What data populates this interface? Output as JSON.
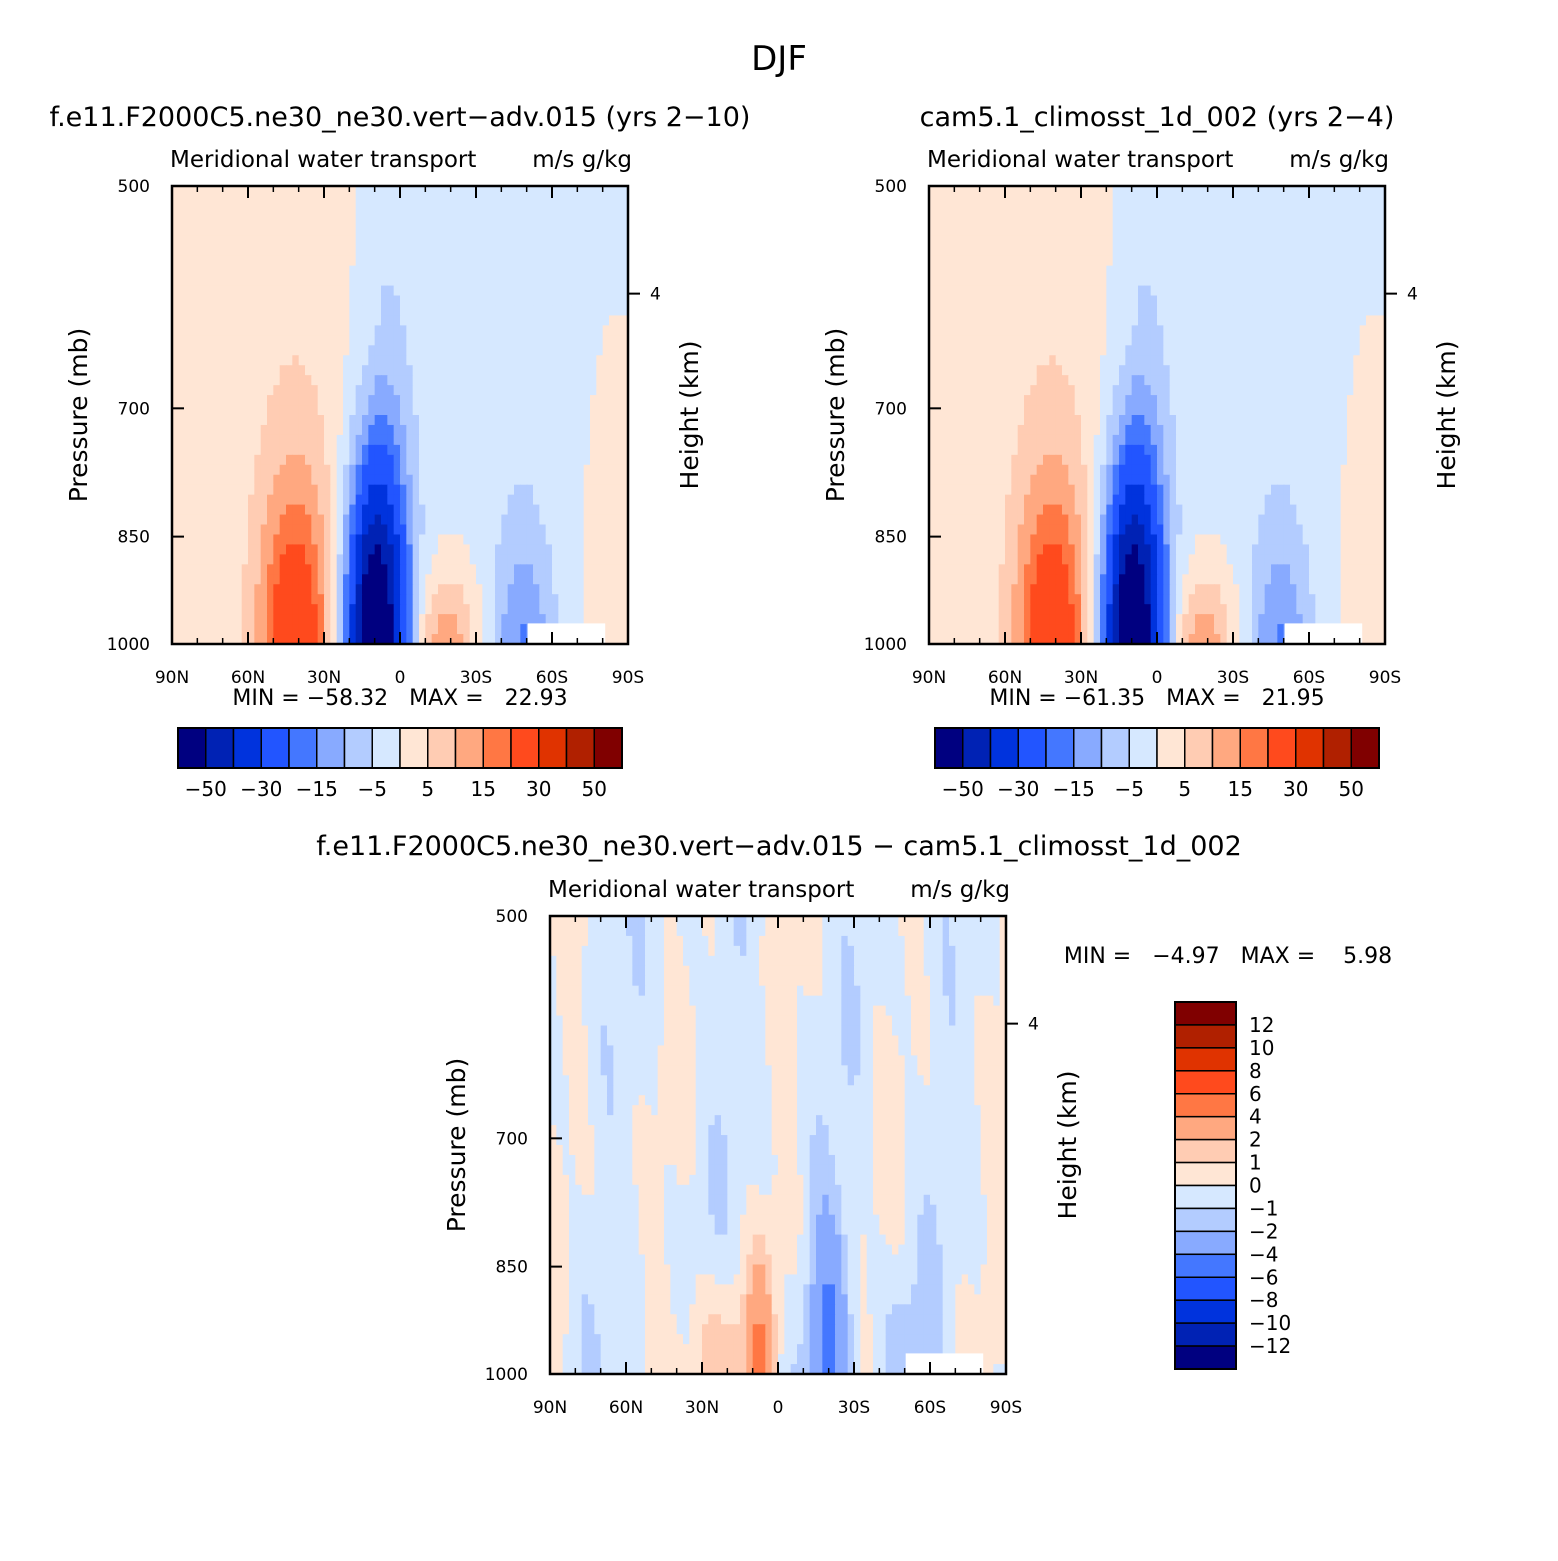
{
  "suptitle": "DJF",
  "colors": {
    "main_levels": [
      "#000080",
      "#0022b4",
      "#0033dd",
      "#2255ff",
      "#4477ff",
      "#88aaff",
      "#b3ccff",
      "#d6e8ff",
      "#ffe6d5",
      "#ffccb3",
      "#ffa880",
      "#ff7744",
      "#ff4a1d",
      "#e03300",
      "#b02000",
      "#800000"
    ],
    "diff_levels": [
      "#000080",
      "#0022b4",
      "#0033dd",
      "#2255ff",
      "#4477ff",
      "#88aaff",
      "#b3ccff",
      "#d6e8ff",
      "#ffe6d5",
      "#ffccb3",
      "#ffa880",
      "#ff7744",
      "#ff4a1d",
      "#e03300",
      "#b02000",
      "#800000"
    ]
  },
  "chart_data": [
    {
      "type": "heatmap",
      "title": "f.e11.F2000C5.ne30_ne30.vert−adv.015 (yrs 2−10)",
      "left_label": "Meridional water transport",
      "right_label": "m/s g/kg",
      "ylabel": "Pressure (mb)",
      "ylabel_right": "Height (km)",
      "xticks": [
        "90N",
        "60N",
        "30N",
        "0",
        "30S",
        "60S",
        "90S"
      ],
      "yticks": [
        "500",
        "700",
        "850",
        "1000"
      ],
      "right_ticks": [
        "4"
      ],
      "xlim": [
        90,
        -90
      ],
      "ylim": [
        1000,
        500
      ],
      "stats": "MIN = −58.32   MAX =   22.93",
      "colorbar_labels": [
        "−50",
        "−30",
        "−15",
        "−5",
        "5",
        "15",
        "30",
        "50"
      ],
      "min": -58.32,
      "max": 22.93
    },
    {
      "type": "heatmap",
      "title": "cam5.1_climosst_1d_002 (yrs 2−4)",
      "left_label": "Meridional water transport",
      "right_label": "m/s g/kg",
      "ylabel": "Pressure (mb)",
      "ylabel_right": "Height (km)",
      "xticks": [
        "90N",
        "60N",
        "30N",
        "0",
        "30S",
        "60S",
        "90S"
      ],
      "yticks": [
        "500",
        "700",
        "850",
        "1000"
      ],
      "right_ticks": [
        "4"
      ],
      "xlim": [
        90,
        -90
      ],
      "ylim": [
        1000,
        500
      ],
      "stats": "MIN = −61.35   MAX =   21.95",
      "colorbar_labels": [
        "−50",
        "−30",
        "−15",
        "−5",
        "5",
        "15",
        "30",
        "50"
      ],
      "min": -61.35,
      "max": 21.95
    },
    {
      "type": "heatmap",
      "title": "f.e11.F2000C5.ne30_ne30.vert−adv.015 − cam5.1_climosst_1d_002",
      "left_label": "Meridional water transport",
      "right_label": "m/s g/kg",
      "ylabel": "Pressure (mb)",
      "ylabel_right": "Height (km)",
      "xticks": [
        "90N",
        "60N",
        "30N",
        "0",
        "30S",
        "60S",
        "90S"
      ],
      "yticks": [
        "500",
        "700",
        "850",
        "1000"
      ],
      "right_ticks": [
        "4"
      ],
      "xlim": [
        90,
        -90
      ],
      "ylim": [
        1000,
        500
      ],
      "stats": "MIN =   −4.97   MAX =    5.98",
      "colorbar_labels": [
        "12",
        "10",
        "8",
        "6",
        "4",
        "2",
        "1",
        "0",
        "−1",
        "−2",
        "−4",
        "−6",
        "−8",
        "−10",
        "−12"
      ],
      "min": -4.97,
      "max": 5.98
    }
  ]
}
